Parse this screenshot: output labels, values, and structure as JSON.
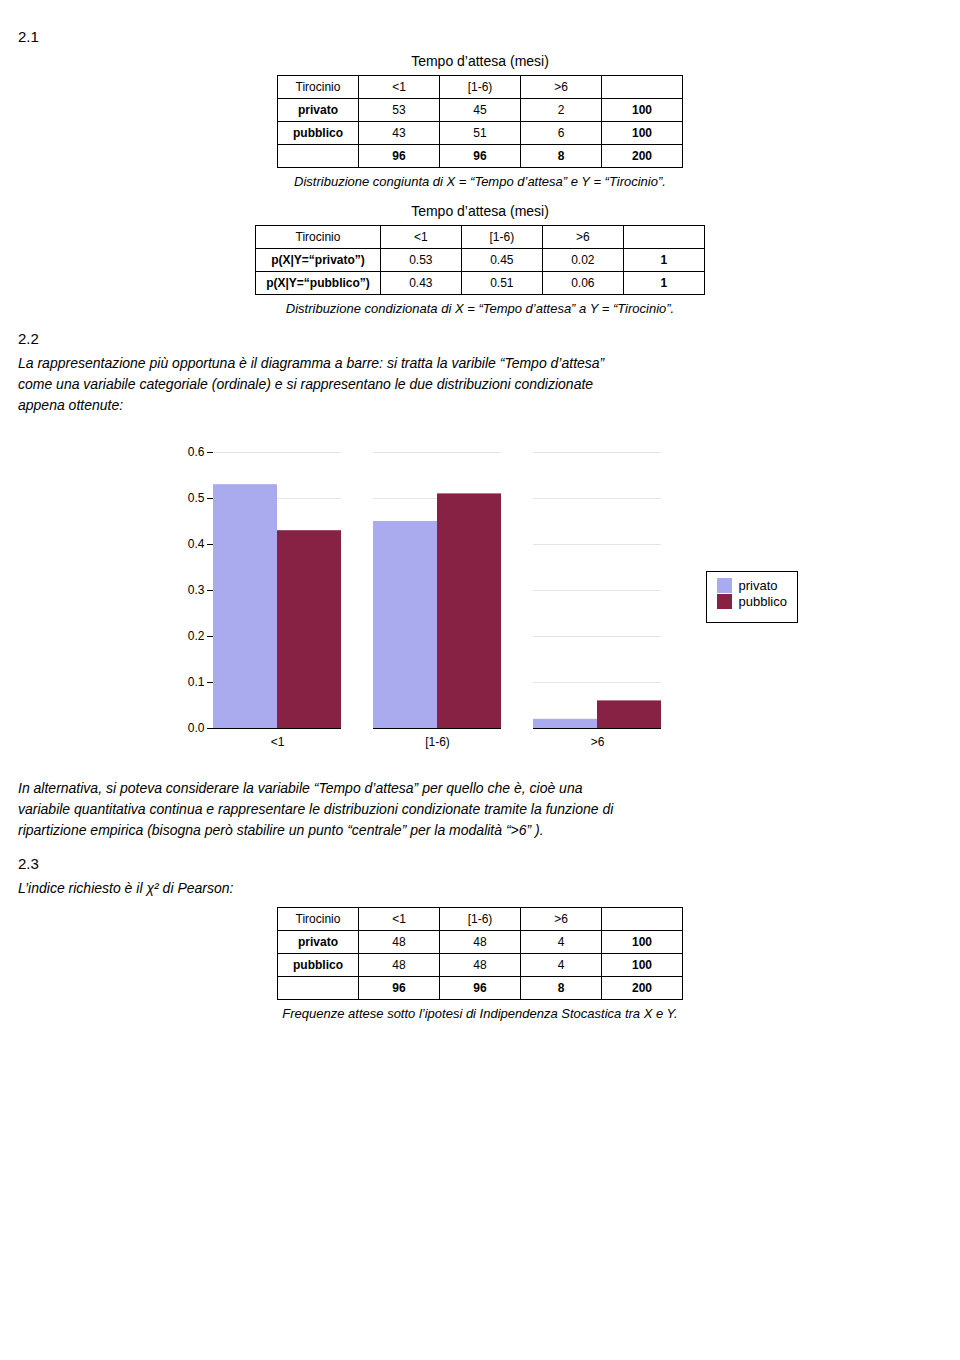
{
  "chart_data": {
    "type": "bar",
    "categories": [
      "<1",
      "[1-6)",
      ">6"
    ],
    "series": [
      {
        "name": "privato",
        "color": "#aaaaee",
        "values": [
          0.53,
          0.45,
          0.02
        ]
      },
      {
        "name": "pubblico",
        "color": "#882244",
        "values": [
          0.43,
          0.51,
          0.06
        ]
      }
    ],
    "ylim": [
      0,
      0.6
    ],
    "yticks": [
      {
        "value": 0,
        "label": "0.0"
      },
      0.1,
      0.2,
      0.3,
      0.4,
      0.5,
      0.6
    ],
    "grid": true,
    "legend": "right"
  },
  "before_chart": [
    {
      "heading": "2.1"
    },
    {
      "table": {
        "title": "Tempo d’attesa (mesi)",
        "columns": [
          "Tirocinio",
          "<1",
          "[1-6)",
          ">6",
          null
        ],
        "rows": [
          [
            "privato",
            "53",
            "45",
            "2",
            "100"
          ],
          [
            "pubblico",
            "43",
            "51",
            "6",
            "100"
          ],
          [
            null,
            "96",
            "96",
            "8",
            "200"
          ]
        ],
        "caption": "Distribuzione congiunta di X = “Tempo d’attesa” e Y = “Tirocinio”."
      }
    },
    {
      "table": {
        "title": "Tempo d’attesa (mesi)",
        "columns": [
          "Tirocinio",
          "<1",
          "[1-6)",
          ">6",
          null
        ],
        "rows": [
          [
            "p(X|Y=“privato”)",
            "0.53",
            "0.45",
            "0.02",
            "1"
          ],
          [
            "p(X|Y=“pubblico”)",
            "0.43",
            "0.51",
            "0.06",
            "1"
          ]
        ],
        "caption": "Distribuzione condizionata di X = “Tempo d’attesa” a Y = “Tirocinio”."
      }
    },
    {
      "heading": "2.2"
    },
    {
      "text": "La rappresentazione più opportuna è il diagramma a barre: si tratta la varibile “Tempo d’attesa”"
    },
    {
      "text": "come una variabile categoriale (ordinale) e si rappresentano le due distribuzioni condizionate"
    },
    {
      "text": "appena ottenute:"
    }
  ],
  "after_chart": [
    {
      "text": "In alternativa, si poteva considerare la variabile “Tempo d’attesa” per quello che è, cioè una"
    },
    {
      "text": "variabile quantitativa continua e rappresentare le distribuzioni condizionate tramite la funzione di"
    },
    {
      "text": "ripartizione empirica (bisogna però stabilire un punto “centrale” per la modalità “>6” )."
    },
    {
      "heading": "2.3"
    },
    {
      "text": "L’indice richiesto è il χ² di Pearson:"
    },
    {
      "table": {
        "title": null,
        "columns": [
          "Tirocinio",
          "<1",
          "[1-6)",
          ">6",
          null
        ],
        "rows": [
          [
            "privato",
            "48",
            "48",
            "4",
            "100"
          ],
          [
            "pubblico",
            "48",
            "48",
            "4",
            "100"
          ],
          [
            null,
            "96",
            "96",
            "8",
            "200"
          ]
        ],
        "caption": "Frequenze attese sotto l’ipotesi di Indipendenza Stocastica tra X e Y."
      }
    }
  ]
}
